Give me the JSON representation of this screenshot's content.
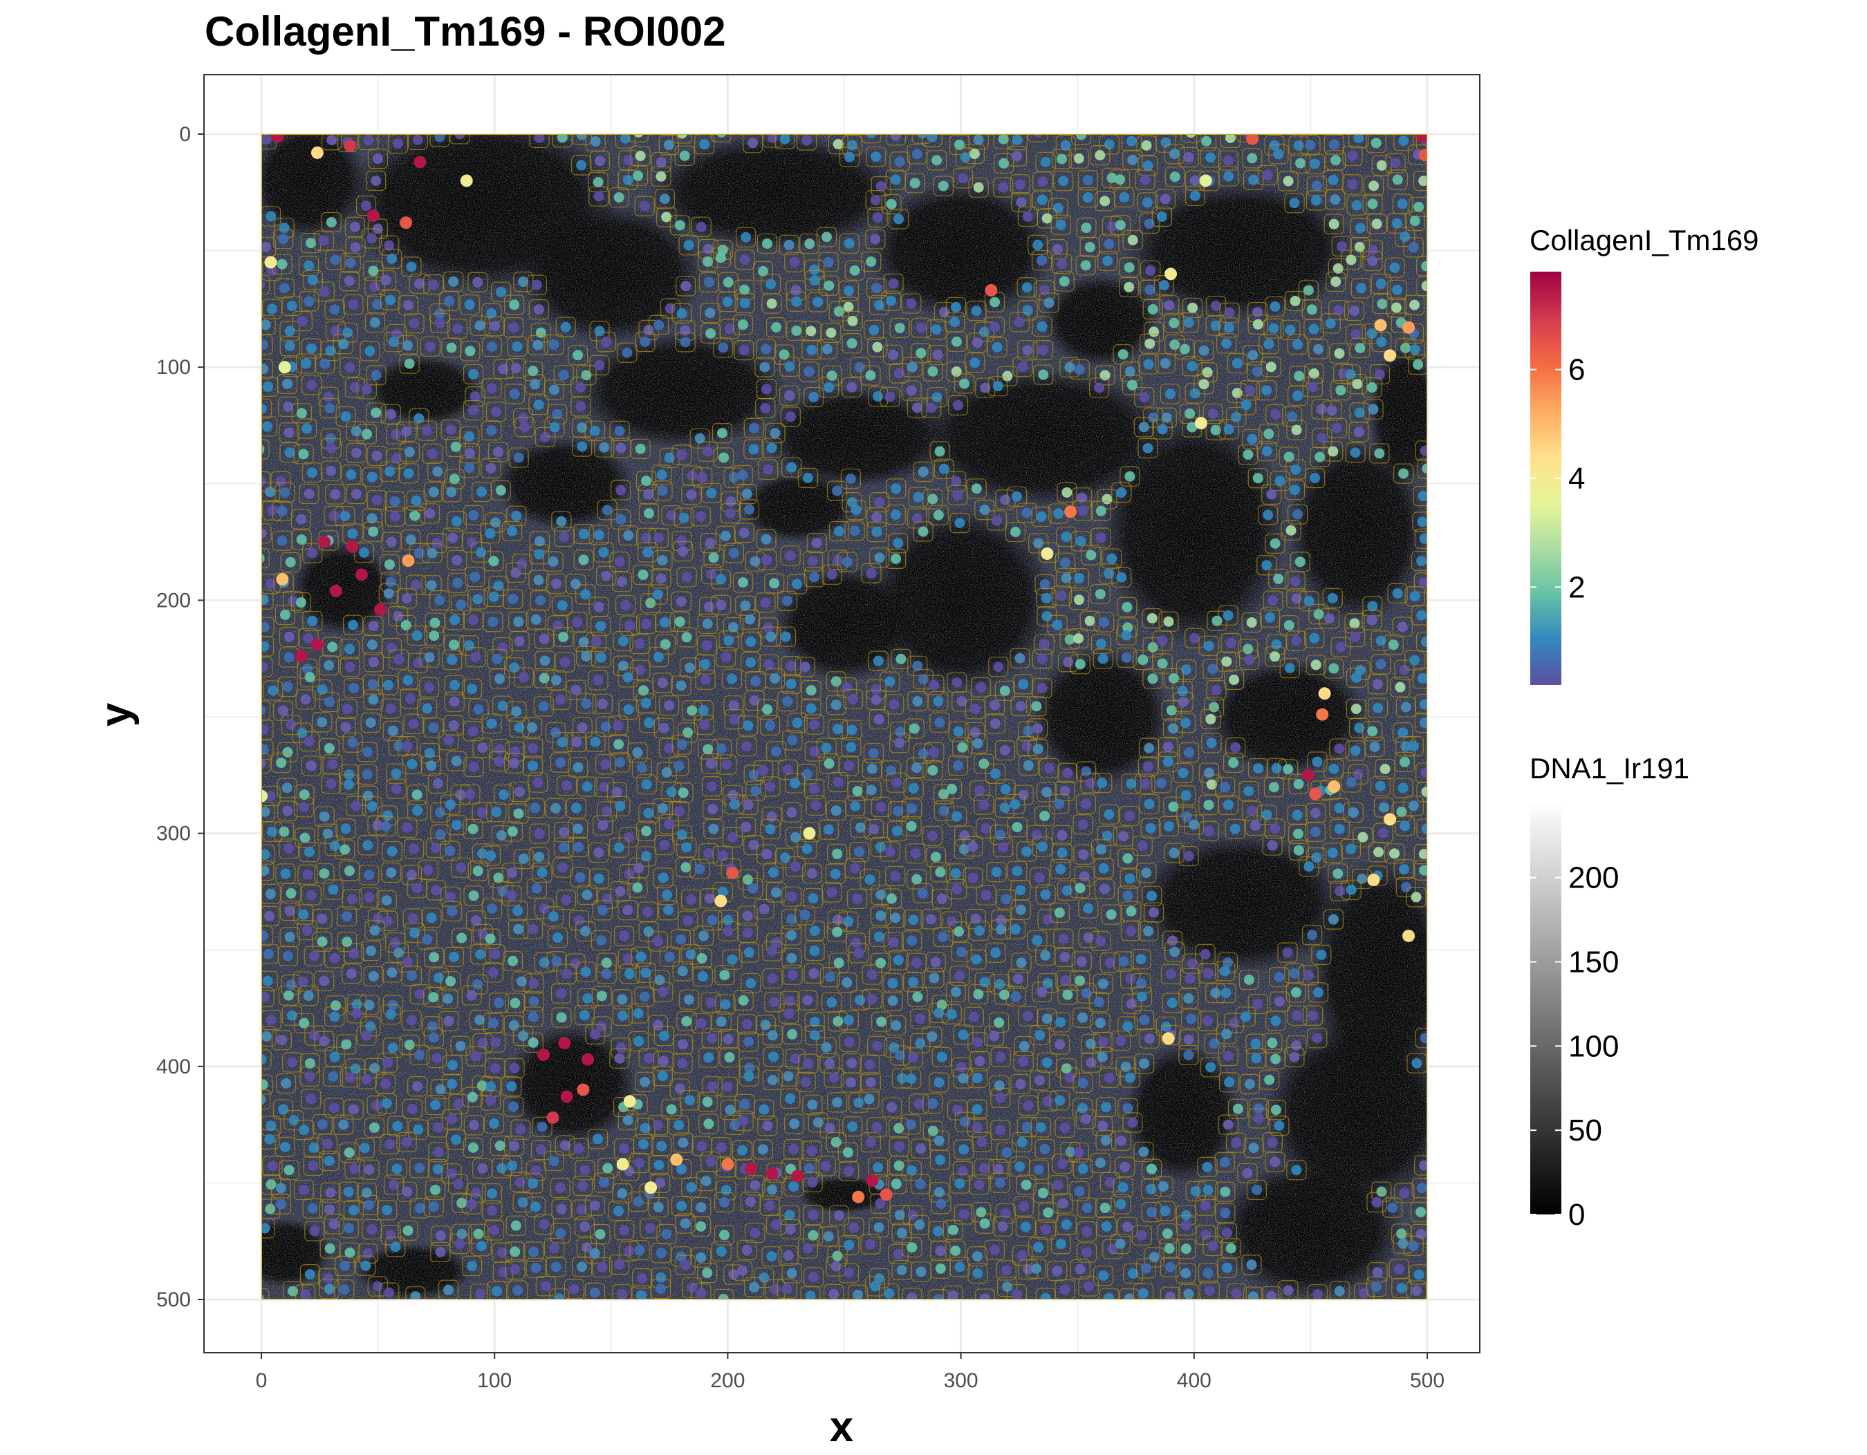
{
  "chart_data": {
    "type": "scatter",
    "title": "CollagenI_Tm169 - ROI002",
    "xlabel": "x",
    "ylabel": "y",
    "xlim": [
      -25,
      525
    ],
    "ylim": [
      -25,
      525
    ],
    "y_reversed": true,
    "x_ticks": [
      "0",
      "100",
      "200",
      "300",
      "400",
      "500"
    ],
    "y_ticks": [
      "0",
      "100",
      "200",
      "300",
      "400",
      "500"
    ],
    "grid": true,
    "image_extent": {
      "x": [
        0,
        500
      ],
      "y": [
        0,
        500
      ]
    },
    "background_channel": "DNA1_Ir191",
    "color_channel": "CollagenI_Tm169",
    "segmentation_outline_color": "#d4aa00",
    "legends": [
      {
        "title": "CollagenI_Tm169",
        "scale": "continuous",
        "palette": [
          "#5e4fa2",
          "#3288bd",
          "#66c2a5",
          "#abdda4",
          "#e6f598",
          "#fee08b",
          "#fdae61",
          "#f46d43",
          "#d53e4f",
          "#9e0142"
        ],
        "range": [
          0.2,
          7.8
        ],
        "ticks": [
          "2",
          "4",
          "6"
        ]
      },
      {
        "title": "DNA1_Ir191",
        "scale": "continuous",
        "palette": [
          "#000000",
          "#ffffff"
        ],
        "range": [
          0,
          245
        ],
        "ticks": [
          "0",
          "50",
          "100",
          "150",
          "200"
        ]
      }
    ],
    "series": [
      {
        "name": "CollagenI_Tm169",
        "points": [
          {
            "x": 7,
            "y": 1,
            "v": 7.5
          },
          {
            "x": 38,
            "y": 5,
            "v": 7.0
          },
          {
            "x": 68,
            "y": 12,
            "v": 7.5
          },
          {
            "x": 62,
            "y": 38,
            "v": 6.5
          },
          {
            "x": 48,
            "y": 35,
            "v": 7.5
          },
          {
            "x": 498,
            "y": 1,
            "v": 7.5
          },
          {
            "x": 499,
            "y": 9,
            "v": 6.5
          },
          {
            "x": 425,
            "y": 2,
            "v": 6.5
          },
          {
            "x": 313,
            "y": 67,
            "v": 6.5
          },
          {
            "x": 492,
            "y": 83,
            "v": 5.5
          },
          {
            "x": 480,
            "y": 82,
            "v": 5.0
          },
          {
            "x": 484,
            "y": 95,
            "v": 4.5
          },
          {
            "x": 27,
            "y": 175,
            "v": 7.5
          },
          {
            "x": 39,
            "y": 177,
            "v": 7.5
          },
          {
            "x": 43,
            "y": 189,
            "v": 7.5
          },
          {
            "x": 32,
            "y": 196,
            "v": 7.5
          },
          {
            "x": 51,
            "y": 204,
            "v": 7.5
          },
          {
            "x": 24,
            "y": 219,
            "v": 7.5
          },
          {
            "x": 17,
            "y": 224,
            "v": 7.5
          },
          {
            "x": 63,
            "y": 183,
            "v": 5.5
          },
          {
            "x": 9,
            "y": 191,
            "v": 5.0
          },
          {
            "x": 202,
            "y": 317,
            "v": 6.5
          },
          {
            "x": 197,
            "y": 329,
            "v": 4.5
          },
          {
            "x": 347,
            "y": 162,
            "v": 6.0
          },
          {
            "x": 121,
            "y": 395,
            "v": 7.5
          },
          {
            "x": 130,
            "y": 390,
            "v": 7.5
          },
          {
            "x": 140,
            "y": 397,
            "v": 7.5
          },
          {
            "x": 125,
            "y": 422,
            "v": 7.0
          },
          {
            "x": 131,
            "y": 413,
            "v": 7.5
          },
          {
            "x": 138,
            "y": 410,
            "v": 6.5
          },
          {
            "x": 210,
            "y": 444,
            "v": 7.5
          },
          {
            "x": 219,
            "y": 446,
            "v": 7.5
          },
          {
            "x": 230,
            "y": 447,
            "v": 7.5
          },
          {
            "x": 262,
            "y": 449,
            "v": 7.5
          },
          {
            "x": 268,
            "y": 455,
            "v": 6.5
          },
          {
            "x": 256,
            "y": 456,
            "v": 6.0
          },
          {
            "x": 200,
            "y": 442,
            "v": 6.0
          },
          {
            "x": 178,
            "y": 440,
            "v": 5.0
          },
          {
            "x": 167,
            "y": 452,
            "v": 4.0
          },
          {
            "x": 155,
            "y": 442,
            "v": 4.0
          },
          {
            "x": 455,
            "y": 249,
            "v": 6.0
          },
          {
            "x": 449,
            "y": 275,
            "v": 7.5
          },
          {
            "x": 452,
            "y": 283,
            "v": 6.5
          },
          {
            "x": 460,
            "y": 280,
            "v": 5.0
          },
          {
            "x": 484,
            "y": 294,
            "v": 4.5
          },
          {
            "x": 477,
            "y": 320,
            "v": 4.5
          },
          {
            "x": 492,
            "y": 344,
            "v": 4.5
          },
          {
            "x": 456,
            "y": 240,
            "v": 4.5
          },
          {
            "x": 403,
            "y": 124,
            "v": 4.0
          },
          {
            "x": 390,
            "y": 60,
            "v": 4.0
          },
          {
            "x": 24,
            "y": 8,
            "v": 4.5
          },
          {
            "x": 88,
            "y": 20,
            "v": 4.0
          },
          {
            "x": 4,
            "y": 55,
            "v": 4.0
          },
          {
            "x": 10,
            "y": 100,
            "v": 3.5
          },
          {
            "x": 337,
            "y": 180,
            "v": 4.0
          },
          {
            "x": 389,
            "y": 388,
            "v": 4.5
          },
          {
            "x": 158,
            "y": 415,
            "v": 4.0
          },
          {
            "x": 235,
            "y": 300,
            "v": 4.0
          },
          {
            "x": 0,
            "y": 284,
            "v": 3.5
          },
          {
            "x": 405,
            "y": 20,
            "v": 3.5
          }
        ]
      }
    ]
  }
}
